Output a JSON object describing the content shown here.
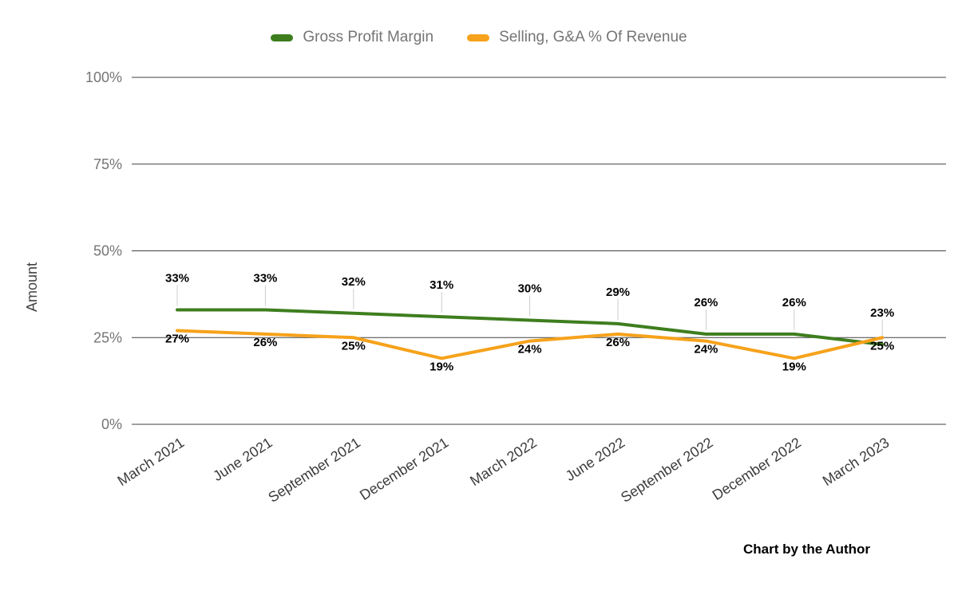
{
  "chart_data": {
    "type": "line",
    "title": "",
    "xlabel": "",
    "ylabel": "Amount",
    "ylim": [
      0,
      100
    ],
    "grid": true,
    "legend_position": "top",
    "categories": [
      "March 2021",
      "June 2021",
      "September 2021",
      "December 2021",
      "March 2022",
      "June 2022",
      "September 2022",
      "December 2022",
      "March 2023"
    ],
    "y_ticks": [
      {
        "value": 0,
        "label": "0%"
      },
      {
        "value": 25,
        "label": "25%"
      },
      {
        "value": 50,
        "label": "50%"
      },
      {
        "value": 75,
        "label": "75%"
      },
      {
        "value": 100,
        "label": "100%"
      }
    ],
    "series": [
      {
        "name": "Gross Profit Margin",
        "color": "#3e7e1e",
        "values": [
          33,
          33,
          32,
          31,
          30,
          29,
          26,
          26,
          23
        ],
        "labels": [
          "33%",
          "33%",
          "32%",
          "31%",
          "30%",
          "29%",
          "26%",
          "26%",
          "23%"
        ]
      },
      {
        "name": "Selling, G&A % Of Revenue",
        "color": "#f6a21b",
        "values": [
          27,
          26,
          25,
          19,
          24,
          26,
          24,
          19,
          25
        ],
        "labels": [
          "27%",
          "26%",
          "25%",
          "19%",
          "24%",
          "26%",
          "24%",
          "19%",
          "25%"
        ]
      }
    ]
  },
  "attribution": "Chart by the Author",
  "colors": {
    "gridline": "#424242",
    "y_tick_text": "#757575",
    "x_tick_text": "#3b3b3b",
    "axis_title_text": "#424242",
    "data_label_text": "#000000",
    "leader_line": "#cccccc",
    "background": "#ffffff"
  }
}
